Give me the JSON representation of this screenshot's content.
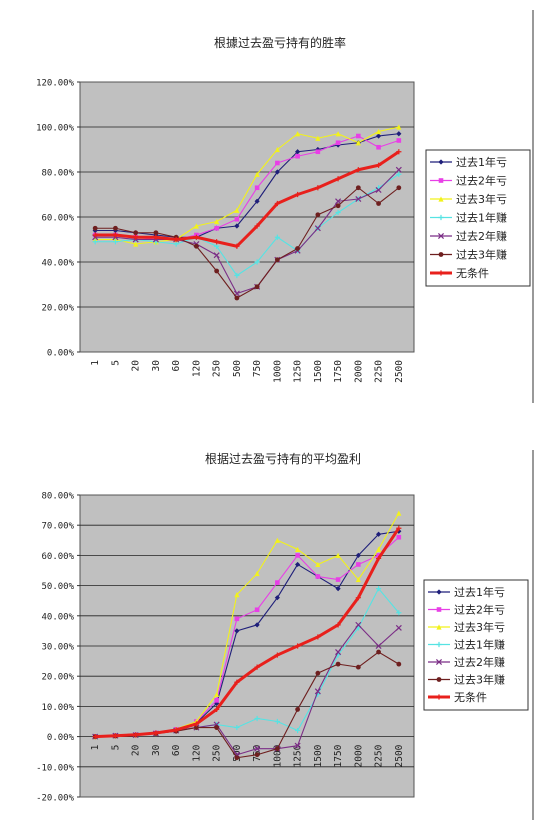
{
  "chart_data": [
    {
      "type": "line",
      "title": "根據过去盈亏持有的胜率",
      "categories": [
        "1",
        "5",
        "20",
        "30",
        "60",
        "120",
        "250",
        "500",
        "750",
        "1000",
        "1250",
        "1500",
        "1750",
        "2000",
        "2250",
        "2500"
      ],
      "y_ticks": [
        "120.00%",
        "100.00%",
        "80.00%",
        "60.00%",
        "40.00%",
        "20.00%",
        "0.00%"
      ],
      "ylim": [
        0,
        120
      ],
      "grid": true,
      "legend_position": "right",
      "series": [
        {
          "name": "过去1年亏",
          "color": "#1f1f7a",
          "marker": "diamond",
          "values": [
            54,
            54,
            53,
            52,
            51,
            51,
            55,
            56,
            67,
            80,
            89,
            90,
            92,
            93,
            96,
            97
          ]
        },
        {
          "name": "过去2年亏",
          "color": "#e83fe6",
          "marker": "square",
          "values": [
            52,
            52,
            51,
            50,
            50,
            52,
            55,
            59,
            73,
            84,
            87,
            89,
            93,
            96,
            91,
            94
          ]
        },
        {
          "name": "过去3年亏",
          "color": "#f2f21a",
          "marker": "triangle",
          "values": [
            50,
            50,
            48,
            49,
            50,
            56,
            58,
            63,
            79,
            90,
            97,
            95,
            97,
            93,
            98,
            100
          ]
        },
        {
          "name": "过去1年赚",
          "color": "#56e3e3",
          "marker": "cross",
          "values": [
            49,
            49,
            50,
            49,
            48,
            51,
            47,
            34,
            40,
            51,
            45,
            55,
            62,
            68,
            73,
            79
          ]
        },
        {
          "name": "过去2年赚",
          "color": "#7b2e86",
          "marker": "x",
          "values": [
            51,
            51,
            50,
            50,
            50,
            48,
            43,
            26,
            29,
            41,
            45,
            55,
            67,
            68,
            72,
            81
          ]
        },
        {
          "name": "过去3年赚",
          "color": "#6e1f1f",
          "marker": "circle",
          "values": [
            55,
            55,
            53,
            53,
            51,
            47,
            36,
            24,
            29,
            41,
            46,
            61,
            65,
            73,
            66,
            73
          ]
        },
        {
          "name": "无条件",
          "color": "#e8201c",
          "marker": "plus",
          "values": [
            52,
            52,
            51,
            51,
            50,
            51,
            49,
            47,
            56,
            66,
            70,
            73,
            77,
            81,
            83,
            89
          ]
        }
      ]
    },
    {
      "type": "line",
      "title": "根据过去盈亏持有的平均盈利",
      "categories": [
        "1",
        "5",
        "20",
        "30",
        "60",
        "120",
        "250",
        "500",
        "750",
        "1000",
        "1250",
        "1500",
        "1750",
        "2000",
        "2250",
        "2500"
      ],
      "y_ticks": [
        "80.00%",
        "70.00%",
        "60.00%",
        "50.00%",
        "40.00%",
        "30.00%",
        "20.00%",
        "10.00%",
        "0.00%",
        "-10.00%",
        "-20.00%"
      ],
      "ylim": [
        -20,
        80
      ],
      "grid": true,
      "legend_position": "right",
      "series": [
        {
          "name": "过去1年亏",
          "color": "#1f1f7a",
          "marker": "diamond",
          "values": [
            0,
            0.3,
            0.6,
            1.2,
            2.3,
            4.5,
            11,
            35,
            37,
            46,
            57,
            53,
            49,
            60,
            67,
            68
          ]
        },
        {
          "name": "过去2年亏",
          "color": "#e83fe6",
          "marker": "square",
          "values": [
            0,
            0.3,
            0.6,
            1.2,
            2.4,
            5,
            12,
            39,
            42,
            51,
            60,
            53,
            52,
            57,
            60,
            66
          ]
        },
        {
          "name": "过去3年亏",
          "color": "#f2f21a",
          "marker": "triangle",
          "values": [
            0,
            0.3,
            0.6,
            1.2,
            2.5,
            5,
            14,
            47,
            54,
            65,
            62,
            57,
            60,
            52,
            62,
            74
          ]
        },
        {
          "name": "过去1年赚",
          "color": "#56e3e3",
          "marker": "cross",
          "values": [
            0,
            0.3,
            0.6,
            1,
            2,
            3,
            4,
            3,
            6,
            5,
            2,
            14,
            27,
            36,
            49,
            41
          ]
        },
        {
          "name": "过去2年赚",
          "color": "#7b2e86",
          "marker": "x",
          "values": [
            0,
            0.3,
            0.5,
            1,
            2,
            3,
            4,
            -6,
            -4,
            -4,
            -3,
            15,
            28,
            37,
            30,
            36
          ]
        },
        {
          "name": "过去3年赚",
          "color": "#6e1f1f",
          "marker": "circle",
          "values": [
            0,
            0.2,
            0.5,
            1,
            1.8,
            3,
            3,
            -7,
            -6,
            -4,
            9,
            21,
            24,
            23,
            28,
            24
          ]
        },
        {
          "name": "无条件",
          "color": "#e8201c",
          "marker": "plus",
          "values": [
            0,
            0.3,
            0.6,
            1.2,
            2.2,
            4.2,
            9,
            18,
            23,
            27,
            30,
            33,
            37,
            46,
            59,
            69
          ]
        }
      ]
    }
  ]
}
